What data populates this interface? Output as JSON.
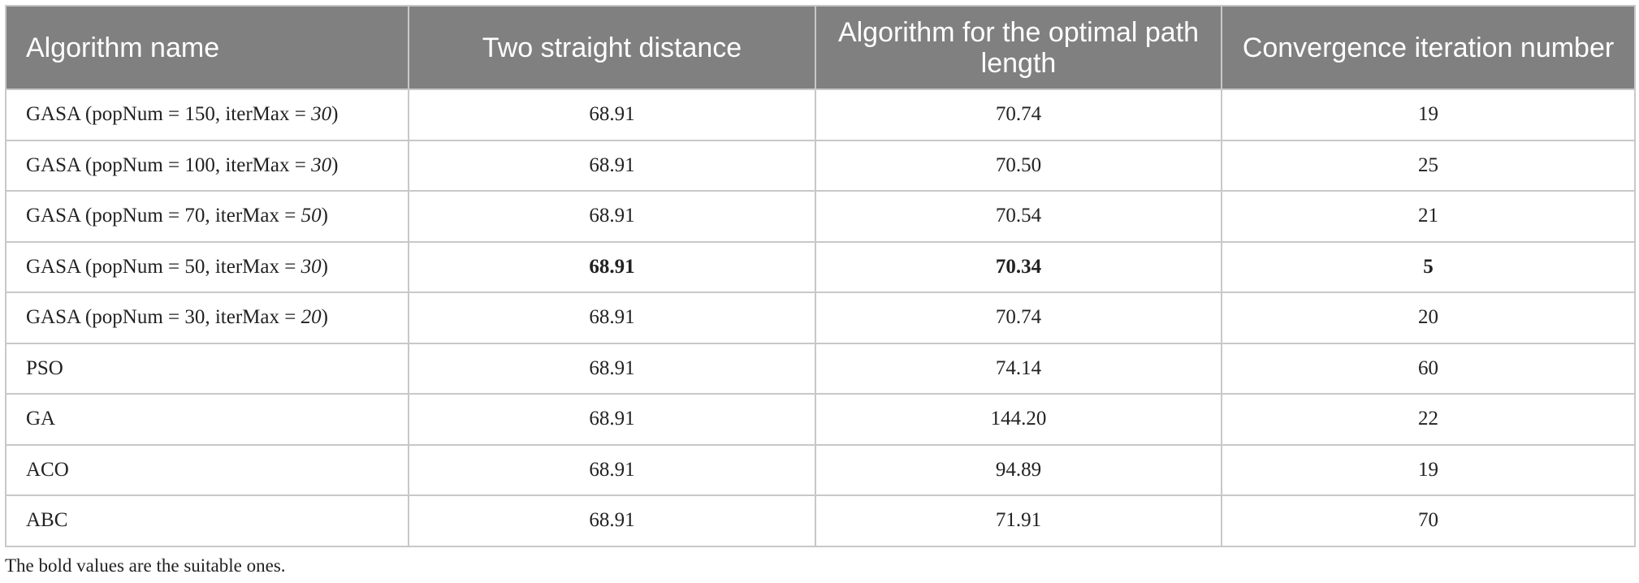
{
  "table": {
    "header": [
      "Algorithm name",
      "Two straight distance",
      "Algorithm for the optimal path length",
      "Convergence iteration number"
    ],
    "rows": [
      [
        [
          "GASA (popNum = 150, iterMax = ",
          "30",
          ")"
        ],
        "68.91",
        "70.74",
        "19"
      ],
      [
        [
          "GASA (popNum = 100, iterMax = ",
          "30",
          ")"
        ],
        "68.91",
        "70.50",
        "25"
      ],
      [
        [
          "GASA (popNum = 70, iterMax = ",
          "50",
          ")"
        ],
        "68.91",
        "70.54",
        "21"
      ],
      [
        [
          "GASA (popNum = 50, iterMax = ",
          "30",
          ")"
        ],
        "68.91",
        "70.34",
        "5"
      ],
      [
        [
          "GASA (popNum = 30, iterMax = ",
          "20",
          ")"
        ],
        "68.91",
        "70.74",
        "20"
      ],
      [
        "PSO",
        "68.91",
        "74.14",
        "60"
      ],
      [
        "GA",
        "68.91",
        "144.20",
        "22"
      ],
      [
        "ACO",
        "68.91",
        "94.89",
        "19"
      ],
      [
        "ABC",
        "68.91",
        "71.91",
        "70"
      ]
    ],
    "bold_cells": [
      [
        3,
        1
      ],
      [
        3,
        2
      ],
      [
        3,
        3
      ]
    ]
  },
  "footnote": "The bold values are the suitable ones."
}
